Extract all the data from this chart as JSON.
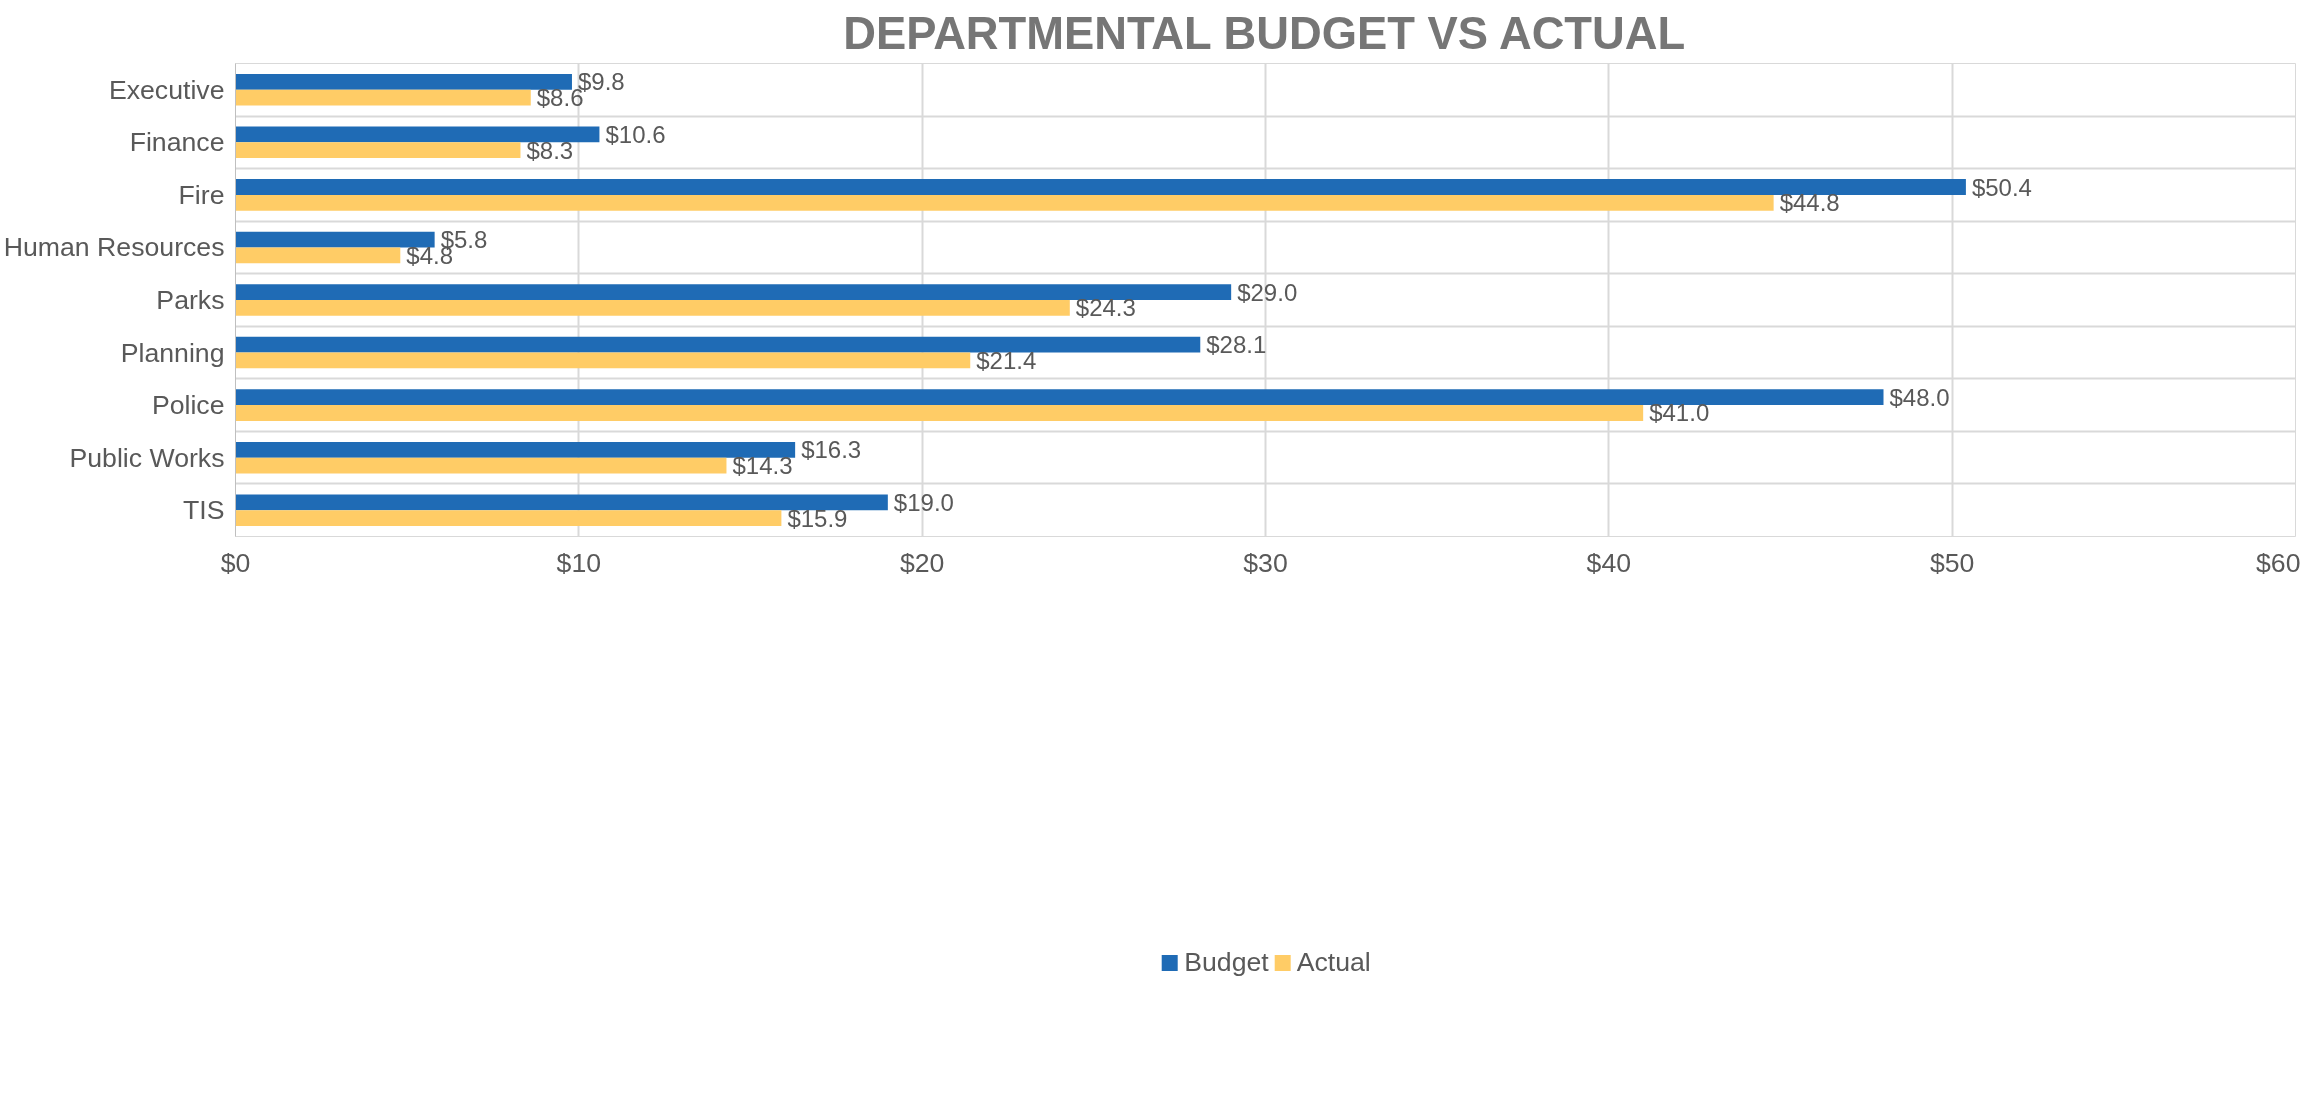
{
  "chart_data": {
    "type": "bar",
    "orientation": "horizontal",
    "title": "DEPARTMENTAL BUDGET VS ACTUAL",
    "categories": [
      "Executive",
      "Finance",
      "Fire",
      "Human Resources",
      "Parks",
      "Planning",
      "Police",
      "Public Works",
      "TIS"
    ],
    "series": [
      {
        "name": "Budget",
        "color": "#1f6bb5",
        "values": [
          9.8,
          10.6,
          50.4,
          5.8,
          29.0,
          28.1,
          48.0,
          16.3,
          19.0
        ],
        "value_labels": [
          "$9.8",
          "$10.6",
          "$50.4",
          "$5.8",
          "$29.0",
          "$28.1",
          "$48.0",
          "$16.3",
          "$19.0"
        ]
      },
      {
        "name": "Actual",
        "color": "#ffcc66",
        "values": [
          8.6,
          8.3,
          44.8,
          4.8,
          24.3,
          21.4,
          41.0,
          14.3,
          15.9
        ],
        "value_labels": [
          "$8.6",
          "$8.3",
          "$44.8",
          "$4.8",
          "$24.3",
          "$21.4",
          "$41.0",
          "$14.3",
          "$15.9"
        ]
      }
    ],
    "xlim": [
      0,
      60
    ],
    "xticks": [
      {
        "value": 0,
        "label": "$0"
      },
      {
        "value": 10,
        "label": "$10"
      },
      {
        "value": 20,
        "label": "$20"
      },
      {
        "value": 30,
        "label": "$30"
      },
      {
        "value": 40,
        "label": "$40"
      },
      {
        "value": 50,
        "label": "$50"
      },
      {
        "value": 60,
        "label": "$60"
      }
    ],
    "grid": true,
    "legend": "bottom"
  }
}
